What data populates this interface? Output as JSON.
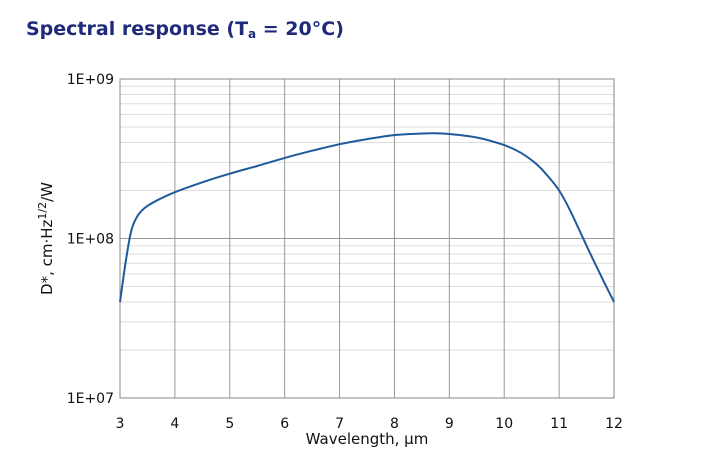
{
  "title": {
    "prefix": "Spectral response (T",
    "subscript": "a",
    "suffix": " = 20°C)"
  },
  "colors": {
    "title": "#1f2a7a",
    "curve": "#1f5a9a",
    "grid_major": "#999999",
    "grid_minor": "#dddddd"
  },
  "chart_data": {
    "type": "line",
    "xlabel": "Wavelength, μm",
    "ylabel": "D*, cm·Hz1/2/W",
    "x_ticks": [
      "3",
      "4",
      "5",
      "6",
      "7",
      "8",
      "9",
      "10",
      "11",
      "12"
    ],
    "y_ticks": [
      "1E+07",
      "1E+08",
      "1E+09"
    ],
    "xlim": [
      3,
      12
    ],
    "ylim": [
      10000000,
      1000000000
    ],
    "yscale": "log",
    "grid": true,
    "series": [
      {
        "x": [
          3.0,
          3.1,
          3.2,
          3.3,
          3.4,
          3.5,
          3.7,
          4.0,
          4.5,
          5.0,
          5.5,
          6.0,
          6.5,
          7.0,
          7.5,
          8.0,
          8.5,
          8.7,
          9.0,
          9.5,
          10.0,
          10.3,
          10.6,
          10.8,
          11.0,
          11.2,
          11.5,
          11.8,
          12.0
        ],
        "y": [
          40000000,
          70000000,
          110000000,
          135000000,
          150000000,
          160000000,
          175000000,
          195000000,
          225000000,
          255000000,
          285000000,
          320000000,
          355000000,
          390000000,
          420000000,
          445000000,
          455000000,
          457000000,
          452000000,
          430000000,
          385000000,
          345000000,
          290000000,
          245000000,
          200000000,
          150000000,
          90000000,
          55000000,
          40000000
        ]
      }
    ]
  }
}
